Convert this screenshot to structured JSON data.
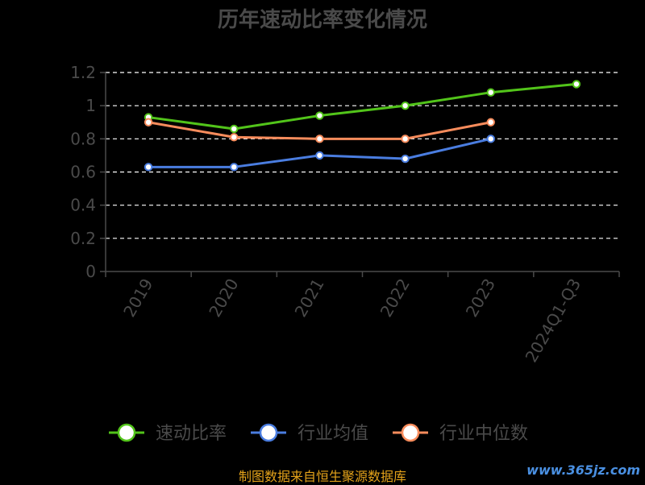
{
  "chart_data": {
    "type": "line",
    "title": "历年速动比率变化情况",
    "xlabel": "",
    "ylabel": "",
    "categories": [
      "2019",
      "2020",
      "2021",
      "2022",
      "2023",
      "2024Q1-Q3"
    ],
    "ylim": [
      0,
      1.2
    ],
    "yticks": [
      0,
      0.2,
      0.4,
      0.6,
      0.8,
      1,
      1.2
    ],
    "ytick_labels": [
      "0",
      "0.2",
      "0.4",
      "0.6",
      "0.8",
      "1",
      "1.2"
    ],
    "grid": true,
    "legend_position": "bottom",
    "series": [
      {
        "name": "速动比率",
        "color": "#52c41a",
        "values": [
          0.93,
          0.86,
          0.94,
          1.0,
          1.08,
          1.13
        ]
      },
      {
        "name": "行业均值",
        "color": "#4a7de0",
        "values": [
          0.63,
          0.63,
          0.7,
          0.68,
          0.8,
          null
        ]
      },
      {
        "name": "行业中位数",
        "color": "#f88c5c",
        "values": [
          0.9,
          0.81,
          0.8,
          0.8,
          0.9,
          null
        ]
      }
    ]
  },
  "footer": {
    "source": "制图数据来自恒生聚源数据库",
    "watermark": "www.365jz.com"
  }
}
